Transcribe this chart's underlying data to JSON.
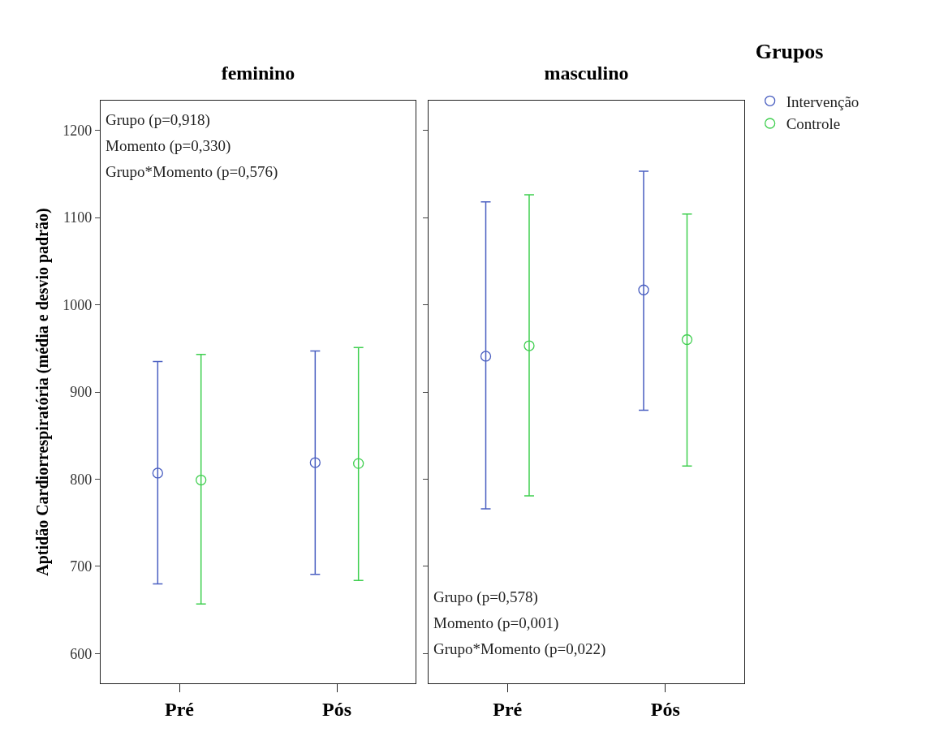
{
  "chart_data": [
    {
      "type": "scatter",
      "title": "feminino",
      "ylabel": "Aptidão Cardiorrespiratória (média e desvio padrão)",
      "categories": [
        "Pré",
        "Pós"
      ],
      "ylim": [
        566,
        1234
      ],
      "yticks": [
        600,
        700,
        800,
        900,
        1000,
        1100,
        1200
      ],
      "grid": false,
      "legend": false,
      "marker": "circle",
      "line_style": "none",
      "series": [
        {
          "color": "#4a5fc1",
          "values": [
            807,
            819
          ],
          "errors": [
            [
              680,
              935
            ],
            [
              691,
              947
            ]
          ]
        },
        {
          "color": "#3fcf4f",
          "values": [
            799,
            818
          ],
          "errors": [
            [
              657,
              943
            ],
            [
              684,
              951
            ]
          ]
        }
      ],
      "annotations": [
        "Grupo (p=0,918)",
        "Momento (p=0,330)",
        "Grupo*Momento (p=0,576)"
      ]
    },
    {
      "type": "scatter",
      "title": "masculino",
      "categories": [
        "Pré",
        "Pós"
      ],
      "ylim": [
        566,
        1234
      ],
      "yticks": [
        600,
        700,
        800,
        900,
        1000,
        1100,
        1200
      ],
      "tick_labels": "x",
      "grid": false,
      "legend": "right",
      "legend_title": "Grupos",
      "marker": "circle",
      "line_style": "none",
      "series": [
        {
          "name": "Intervenção",
          "color": "#4a5fc1",
          "values": [
            941,
            1017
          ],
          "errors": [
            [
              766,
              1118
            ],
            [
              879,
              1153
            ]
          ]
        },
        {
          "name": "Controle",
          "color": "#3fcf4f",
          "values": [
            953,
            960
          ],
          "errors": [
            [
              781,
              1126
            ],
            [
              815,
              1104
            ]
          ]
        }
      ],
      "annotations": [
        "Grupo (p=0,578)",
        "Momento (p=0,001)",
        "Grupo*Momento (p=0,022)"
      ]
    }
  ]
}
